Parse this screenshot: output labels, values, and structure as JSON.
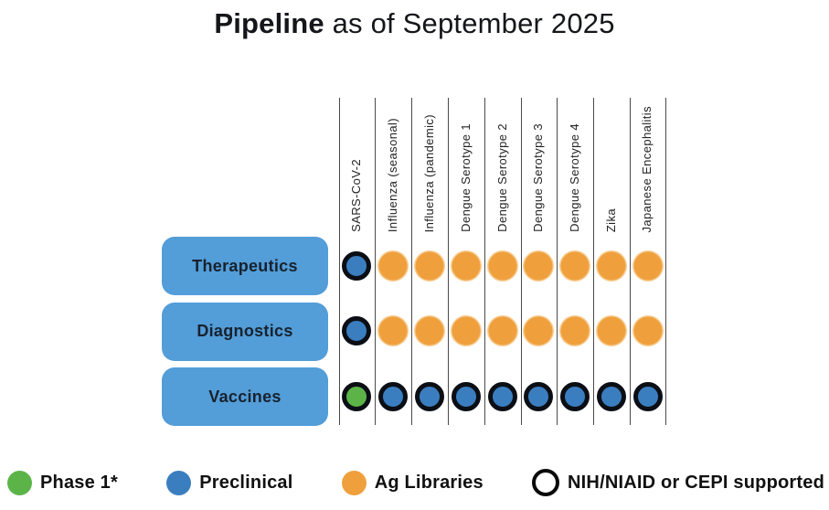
{
  "title": {
    "bold": "Pipeline",
    "rest": " as of September 2025"
  },
  "colors": {
    "phase1": "#5CB449",
    "preclinical": "#3B7EC0",
    "ag_libraries": "#EFA03D",
    "supported_outline": "#0B0F15",
    "row_label_bg": "#539DD8",
    "grid_line": "#4A4A4A"
  },
  "chart_data": {
    "type": "table",
    "title": "Pipeline as of September 2025",
    "columns": [
      "SARS-CoV-2",
      "Influenza (seasonal)",
      "Influenza (pandemic)",
      "Dengue Serotype 1",
      "Dengue Serotype 2",
      "Dengue Serotype 3",
      "Dengue Serotype 4",
      "Zika",
      "Japanese Encephalitis"
    ],
    "rows": [
      {
        "label": "Therapeutics",
        "cells": [
          {
            "status": "preclinical",
            "supported": true
          },
          {
            "status": "ag_libraries",
            "supported": false
          },
          {
            "status": "ag_libraries",
            "supported": false
          },
          {
            "status": "ag_libraries",
            "supported": false
          },
          {
            "status": "ag_libraries",
            "supported": false
          },
          {
            "status": "ag_libraries",
            "supported": false
          },
          {
            "status": "ag_libraries",
            "supported": false
          },
          {
            "status": "ag_libraries",
            "supported": false
          },
          {
            "status": "ag_libraries",
            "supported": false
          }
        ]
      },
      {
        "label": "Diagnostics",
        "cells": [
          {
            "status": "preclinical",
            "supported": true
          },
          {
            "status": "ag_libraries",
            "supported": false
          },
          {
            "status": "ag_libraries",
            "supported": false
          },
          {
            "status": "ag_libraries",
            "supported": false
          },
          {
            "status": "ag_libraries",
            "supported": false
          },
          {
            "status": "ag_libraries",
            "supported": false
          },
          {
            "status": "ag_libraries",
            "supported": false
          },
          {
            "status": "ag_libraries",
            "supported": false
          },
          {
            "status": "ag_libraries",
            "supported": false
          }
        ]
      },
      {
        "label": "Vaccines",
        "cells": [
          {
            "status": "phase1",
            "supported": true
          },
          {
            "status": "preclinical",
            "supported": true
          },
          {
            "status": "preclinical",
            "supported": true
          },
          {
            "status": "preclinical",
            "supported": true
          },
          {
            "status": "preclinical",
            "supported": true
          },
          {
            "status": "preclinical",
            "supported": true
          },
          {
            "status": "preclinical",
            "supported": true
          },
          {
            "status": "preclinical",
            "supported": true
          },
          {
            "status": "preclinical",
            "supported": true
          }
        ]
      }
    ],
    "legend": [
      {
        "key": "phase1",
        "label": "Phase 1*",
        "swatch": "filled"
      },
      {
        "key": "preclinical",
        "label": "Preclinical",
        "swatch": "filled"
      },
      {
        "key": "ag_libraries",
        "label": "Ag Libraries",
        "swatch": "filled"
      },
      {
        "key": "supported",
        "label": "NIH/NIAID or CEPI supported",
        "swatch": "outline"
      }
    ]
  }
}
